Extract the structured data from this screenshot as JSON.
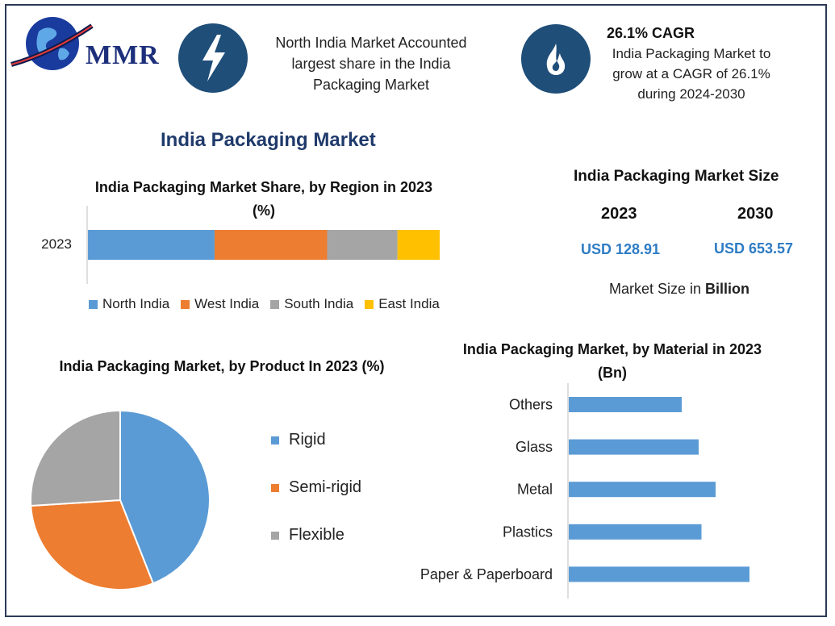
{
  "brand": {
    "logo_text": "MMR"
  },
  "highlights": {
    "left_text": "North India Market Accounted largest share in the India Packaging Market",
    "right_title": "26.1% CAGR",
    "right_text": "India Packaging Market to grow at a CAGR of 26.1% during 2024-2030",
    "left_icon": "lightning-icon",
    "right_icon": "flame-icon"
  },
  "page_title": "India Packaging Market",
  "colors": {
    "blue": "#5b9bd5",
    "orange": "#ed7d31",
    "gray": "#a5a5a5",
    "yellow": "#ffc000",
    "navy": "#1f4e79"
  },
  "market_size": {
    "title": "India Packaging Market Size",
    "years": [
      "2023",
      "2030"
    ],
    "values": [
      "USD 128.91",
      "USD 653.57"
    ],
    "unit_prefix": "Market Size in ",
    "unit_bold": "Billion"
  },
  "chart_data": [
    {
      "type": "bar",
      "orientation": "horizontal-stacked",
      "title": "India Packaging Market Share, by Region in 2023 (%)",
      "categories": [
        "2023"
      ],
      "series": [
        {
          "name": "North India",
          "values": [
            36
          ]
        },
        {
          "name": "West India",
          "values": [
            32
          ]
        },
        {
          "name": "South India",
          "values": [
            20
          ]
        },
        {
          "name": "East India",
          "values": [
            12
          ]
        }
      ],
      "legend": "bottom"
    },
    {
      "type": "pie",
      "title": "India Packaging Market, by Product In 2023 (%)",
      "labels": [
        "Rigid",
        "Semi-rigid",
        "Flexible"
      ],
      "values": [
        44,
        30,
        26
      ],
      "legend": "right"
    },
    {
      "type": "bar",
      "orientation": "horizontal",
      "title": "India Packaging Market, by Material in 2023 (Bn)",
      "categories": [
        "Others",
        "Glass",
        "Metal",
        "Plastics",
        "Paper & Paperboard"
      ],
      "values": [
        20,
        23,
        26,
        23.5,
        32
      ],
      "xlim": [
        0,
        50
      ]
    }
  ]
}
